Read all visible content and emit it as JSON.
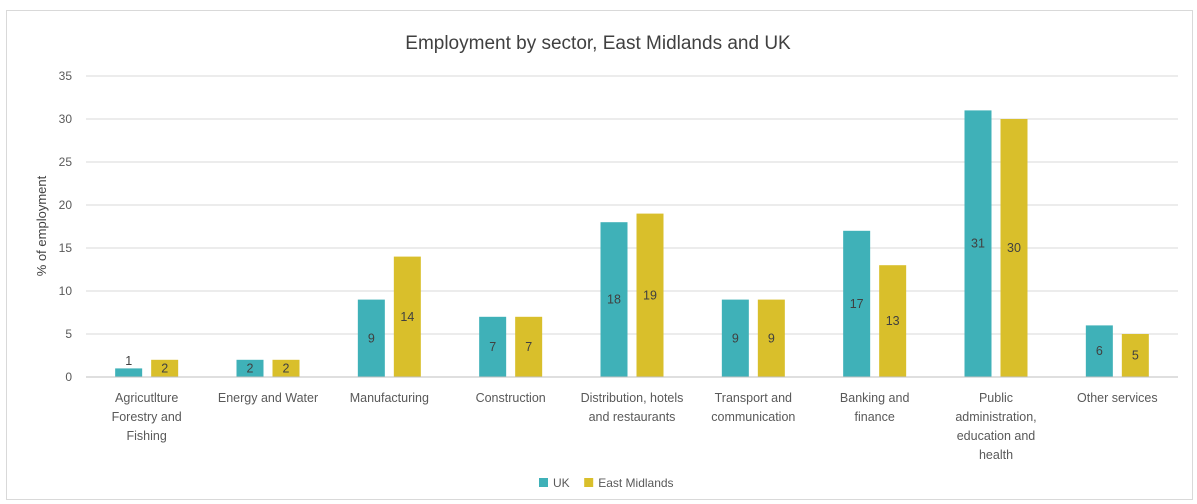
{
  "chart_data": {
    "type": "bar",
    "title": "Employment by sector, East Midlands and UK",
    "xlabel": "",
    "ylabel": "% of employment",
    "ylim": [
      0,
      35
    ],
    "yticks": [
      0,
      5,
      10,
      15,
      20,
      25,
      30,
      35
    ],
    "grid": true,
    "legend_position": "bottom",
    "categories": [
      [
        "Agricutlture",
        "Forestry and",
        "Fishing"
      ],
      [
        "Energy and Water"
      ],
      [
        "Manufacturing"
      ],
      [
        "Construction"
      ],
      [
        "Distribution, hotels",
        "and restaurants"
      ],
      [
        "Transport and",
        "communication"
      ],
      [
        "Banking and",
        "finance"
      ],
      [
        "Public",
        "administration,",
        "education and",
        "health"
      ],
      [
        "Other services"
      ]
    ],
    "series": [
      {
        "name": "UK",
        "color": "#3fb1b8",
        "values": [
          1,
          2,
          9,
          7,
          18,
          9,
          17,
          31,
          6
        ]
      },
      {
        "name": "East Midlands",
        "color": "#d9bf2b",
        "values": [
          2,
          2,
          14,
          7,
          19,
          9,
          13,
          30,
          5
        ]
      }
    ]
  }
}
